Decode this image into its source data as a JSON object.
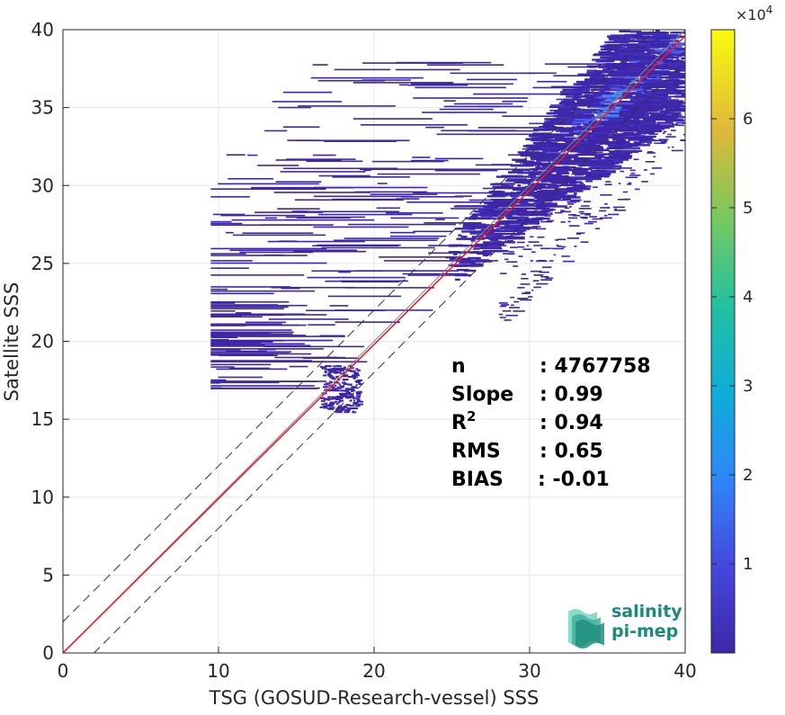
{
  "chart_data": {
    "type": "heatmap",
    "xlabel": "TSG (GOSUD-Research-vessel) SSS",
    "ylabel": "Satellite SSS",
    "xlim": [
      0,
      40
    ],
    "ylim": [
      0,
      40
    ],
    "x_ticks": [
      "0",
      "10",
      "20",
      "30",
      "40"
    ],
    "y_ticks": [
      "0",
      "5",
      "10",
      "15",
      "20",
      "25",
      "30",
      "35",
      "40"
    ],
    "grid": true,
    "colorbar": {
      "range": [
        0,
        70000
      ],
      "multiplier": "×10",
      "exponent": "4",
      "ticks": [
        "1",
        "2",
        "3",
        "4",
        "5",
        "6"
      ],
      "tick_values": [
        1,
        2,
        3,
        4,
        5,
        6
      ],
      "colormap": "parula"
    },
    "reference_lines": [
      {
        "kind": "identity",
        "color": "#888888",
        "slope": 1,
        "intercept": 0
      },
      {
        "kind": "regression",
        "color": "#e8202a",
        "slope": 0.99,
        "intercept": 0
      },
      {
        "kind": "offset-plus",
        "color": "#333333",
        "slope": 1,
        "intercept": 2,
        "dashed": true
      },
      {
        "kind": "offset-minus",
        "color": "#333333",
        "slope": 1,
        "intercept": -2,
        "dashed": true
      }
    ],
    "stats": [
      {
        "label": "n",
        "value": ": 4767758"
      },
      {
        "label": "Slope",
        "value": ": 0.99"
      },
      {
        "label": "R",
        "sup": "2",
        "value": ": 0.94"
      },
      {
        "label": "RMS",
        "value": ": 0.65"
      },
      {
        "label": "BIAS",
        "value": ": -0.01"
      }
    ]
  },
  "logo": {
    "line1": "salinity",
    "line2": "pi-mep"
  },
  "colors": {
    "low": "#3e26a8",
    "mid": "#4a5cf0",
    "high": "#f9fb0e",
    "regression": "#e8202a"
  }
}
